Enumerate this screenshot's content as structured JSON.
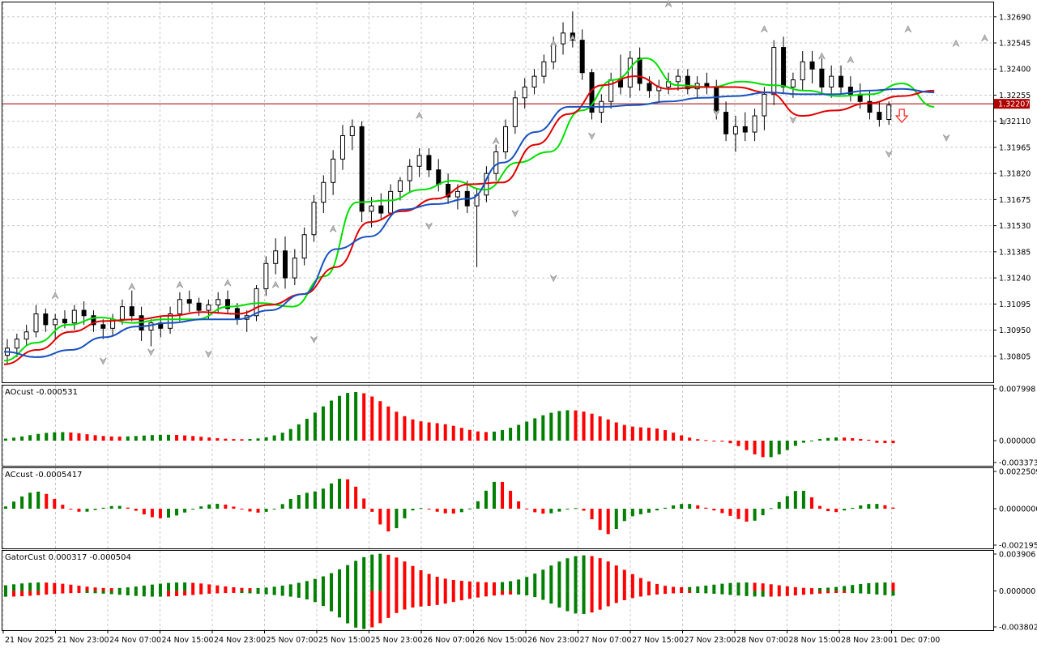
{
  "chart_data": {
    "type": "candlestick",
    "main": {
      "y_ticks": [
        "1.32690",
        "1.32545",
        "1.32400",
        "1.32255",
        "1.32110",
        "1.31965",
        "1.31820",
        "1.31675",
        "1.31530",
        "1.31385",
        "1.31240",
        "1.31095",
        "1.30950",
        "1.30805"
      ],
      "ylim": [
        1.3066,
        1.3277
      ],
      "current_price": "1.32207",
      "current_value": 1.32207,
      "series": [
        {
          "name": "",
          "color": "#00e000",
          "values": [
            1.3078,
            1.3088,
            1.3098,
            1.3102,
            1.3099,
            1.3101,
            1.3101,
            1.3108,
            1.311,
            1.3108,
            1.3125,
            1.3166,
            1.3167,
            1.3173,
            1.3178,
            1.3173,
            1.3188,
            1.3194,
            1.3217,
            1.3234,
            1.3246,
            1.3231,
            1.323,
            1.3233,
            1.3231,
            1.3228,
            1.3225,
            1.3226,
            1.3232,
            1.3219
          ]
        },
        {
          "name": "",
          "color": "#e00000",
          "values": [
            1.3076,
            1.3084,
            1.3094,
            1.31,
            1.3101,
            1.3103,
            1.3105,
            1.3104,
            1.3109,
            1.3115,
            1.313,
            1.3155,
            1.3161,
            1.3168,
            1.3176,
            1.3177,
            1.3198,
            1.3215,
            1.3231,
            1.3236,
            1.3229,
            1.323,
            1.323,
            1.3227,
            1.3214,
            1.3217,
            1.3221,
            1.3225,
            1.3228
          ]
        },
        {
          "name": "",
          "color": "#1a52c0",
          "values": [
            1.3083,
            1.308,
            1.3084,
            1.3091,
            1.3097,
            1.3099,
            1.3101,
            1.3101,
            1.3106,
            1.3115,
            1.314,
            1.3147,
            1.3162,
            1.3165,
            1.3168,
            1.3188,
            1.3205,
            1.3219,
            1.3219,
            1.322,
            1.3222,
            1.3224,
            1.3225,
            1.3227,
            1.3226,
            1.3226,
            1.3228,
            1.3229,
            1.3227
          ]
        }
      ],
      "candles_ohlc": [
        [
          1.3081,
          1.309,
          1.3076,
          1.3085
        ],
        [
          1.3085,
          1.3093,
          1.308,
          1.309
        ],
        [
          1.309,
          1.3098,
          1.3086,
          1.3094
        ],
        [
          1.3094,
          1.3109,
          1.3091,
          1.3104
        ],
        [
          1.3104,
          1.3107,
          1.3094,
          1.3098
        ],
        [
          1.3098,
          1.3104,
          1.309,
          1.3101
        ],
        [
          1.3101,
          1.3106,
          1.3096,
          1.3099
        ],
        [
          1.3099,
          1.3109,
          1.3095,
          1.3106
        ],
        [
          1.3106,
          1.3111,
          1.3098,
          1.3103
        ],
        [
          1.3103,
          1.3106,
          1.3094,
          1.3098
        ],
        [
          1.3098,
          1.3101,
          1.309,
          1.3096
        ],
        [
          1.3096,
          1.3104,
          1.3092,
          1.3101
        ],
        [
          1.3101,
          1.3112,
          1.3098,
          1.3108
        ],
        [
          1.3108,
          1.3117,
          1.31,
          1.3103
        ],
        [
          1.3103,
          1.3108,
          1.3089,
          1.3095
        ],
        [
          1.3095,
          1.3101,
          1.3086,
          1.3099
        ],
        [
          1.3099,
          1.3103,
          1.3091,
          1.3096
        ],
        [
          1.3096,
          1.3108,
          1.3093,
          1.3104
        ],
        [
          1.3104,
          1.3116,
          1.31,
          1.3112
        ],
        [
          1.3112,
          1.3117,
          1.3105,
          1.311
        ],
        [
          1.311,
          1.3113,
          1.3103,
          1.3106
        ],
        [
          1.3106,
          1.3112,
          1.3101,
          1.3109
        ],
        [
          1.3109,
          1.3116,
          1.3104,
          1.3112
        ],
        [
          1.3112,
          1.3117,
          1.3104,
          1.3107
        ],
        [
          1.3107,
          1.311,
          1.3098,
          1.3101
        ],
        [
          1.3101,
          1.3106,
          1.3094,
          1.3103
        ],
        [
          1.3103,
          1.312,
          1.31,
          1.3118
        ],
        [
          1.3118,
          1.3136,
          1.3114,
          1.3132
        ],
        [
          1.3132,
          1.3146,
          1.3126,
          1.3139
        ],
        [
          1.3139,
          1.3147,
          1.3118,
          1.3124
        ],
        [
          1.3124,
          1.314,
          1.312,
          1.3135
        ],
        [
          1.3135,
          1.3152,
          1.3131,
          1.3148
        ],
        [
          1.3148,
          1.317,
          1.3144,
          1.3166
        ],
        [
          1.3166,
          1.3181,
          1.316,
          1.3177
        ],
        [
          1.3177,
          1.3195,
          1.317,
          1.319
        ],
        [
          1.319,
          1.3209,
          1.3184,
          1.3203
        ],
        [
          1.3203,
          1.3212,
          1.3195,
          1.3208
        ],
        [
          1.3208,
          1.3211,
          1.3155,
          1.3161
        ],
        [
          1.3161,
          1.3169,
          1.3152,
          1.3164
        ],
        [
          1.3164,
          1.3171,
          1.3157,
          1.316
        ],
        [
          1.316,
          1.3176,
          1.3158,
          1.3172
        ],
        [
          1.3172,
          1.318,
          1.3167,
          1.3178
        ],
        [
          1.3178,
          1.319,
          1.3172,
          1.3186
        ],
        [
          1.3186,
          1.3196,
          1.318,
          1.3192
        ],
        [
          1.3192,
          1.3196,
          1.318,
          1.3184
        ],
        [
          1.3184,
          1.319,
          1.3172,
          1.3176
        ],
        [
          1.3176,
          1.3182,
          1.3165,
          1.3169
        ],
        [
          1.3169,
          1.3176,
          1.3162,
          1.3172
        ],
        [
          1.3172,
          1.3178,
          1.316,
          1.3164
        ],
        [
          1.3164,
          1.3174,
          1.313,
          1.317
        ],
        [
          1.317,
          1.3186,
          1.3166,
          1.3182
        ],
        [
          1.3182,
          1.3198,
          1.3178,
          1.3194
        ],
        [
          1.3194,
          1.3212,
          1.319,
          1.3208
        ],
        [
          1.3208,
          1.3228,
          1.3204,
          1.3224
        ],
        [
          1.3224,
          1.3235,
          1.3218,
          1.323
        ],
        [
          1.323,
          1.324,
          1.3226,
          1.3236
        ],
        [
          1.3236,
          1.3248,
          1.3232,
          1.3244
        ],
        [
          1.3244,
          1.3258,
          1.324,
          1.3254
        ],
        [
          1.3254,
          1.3266,
          1.3248,
          1.326
        ],
        [
          1.326,
          1.3272,
          1.3252,
          1.3256
        ],
        [
          1.3256,
          1.3262,
          1.3234,
          1.3238
        ],
        [
          1.3238,
          1.324,
          1.3212,
          1.3216
        ],
        [
          1.3216,
          1.3226,
          1.321,
          1.3222
        ],
        [
          1.3222,
          1.3238,
          1.3218,
          1.3234
        ],
        [
          1.3234,
          1.3248,
          1.3226,
          1.323
        ],
        [
          1.323,
          1.325,
          1.3224,
          1.3246
        ],
        [
          1.3246,
          1.3252,
          1.3228,
          1.3232
        ],
        [
          1.3232,
          1.3236,
          1.3224,
          1.3228
        ],
        [
          1.3228,
          1.3234,
          1.3222,
          1.323
        ],
        [
          1.323,
          1.3238,
          1.3226,
          1.3233
        ],
        [
          1.3233,
          1.324,
          1.3228,
          1.3236
        ],
        [
          1.3236,
          1.324,
          1.3226,
          1.3229
        ],
        [
          1.3229,
          1.3236,
          1.3224,
          1.3232
        ],
        [
          1.3232,
          1.3238,
          1.3226,
          1.323
        ],
        [
          1.323,
          1.3234,
          1.3212,
          1.3216
        ],
        [
          1.3216,
          1.3222,
          1.32,
          1.3204
        ],
        [
          1.3204,
          1.3214,
          1.3194,
          1.3208
        ],
        [
          1.3208,
          1.3216,
          1.32,
          1.3205
        ],
        [
          1.3205,
          1.3218,
          1.32,
          1.3214
        ],
        [
          1.3214,
          1.323,
          1.3206,
          1.3226
        ],
        [
          1.3226,
          1.3256,
          1.322,
          1.3252
        ],
        [
          1.3252,
          1.3258,
          1.3226,
          1.323
        ],
        [
          1.323,
          1.3238,
          1.3224,
          1.3234
        ],
        [
          1.3234,
          1.325,
          1.3228,
          1.3244
        ],
        [
          1.3244,
          1.325,
          1.3232,
          1.324
        ],
        [
          1.324,
          1.3246,
          1.3226,
          1.323
        ],
        [
          1.323,
          1.3242,
          1.3224,
          1.3236
        ],
        [
          1.3236,
          1.3242,
          1.3226,
          1.323
        ],
        [
          1.323,
          1.3236,
          1.3222,
          1.3226
        ],
        [
          1.3226,
          1.3232,
          1.3218,
          1.3222
        ],
        [
          1.3222,
          1.3228,
          1.3212,
          1.3216
        ],
        [
          1.3216,
          1.3222,
          1.3208,
          1.3212
        ],
        [
          1.3212,
          1.3222,
          1.3209,
          1.322
        ]
      ],
      "fractals_up": [
        [
          5,
          1.3112
        ],
        [
          13,
          1.3117
        ],
        [
          18,
          1.3118
        ],
        [
          23,
          1.3119
        ],
        [
          28,
          1.3118
        ],
        [
          34,
          1.3149
        ],
        [
          43,
          1.3212
        ],
        [
          51,
          1.3198
        ],
        [
          57,
          1.3252
        ],
        [
          59,
          1.3255
        ],
        [
          69,
          1.3274
        ],
        [
          79,
          1.326
        ],
        [
          85,
          1.3245
        ],
        [
          88,
          1.3243
        ],
        [
          94,
          1.326
        ],
        [
          99,
          1.3252
        ],
        [
          102,
          1.3255
        ]
      ],
      "fractals_down": [
        [
          10,
          1.308
        ],
        [
          15,
          1.3085
        ],
        [
          21,
          1.3084
        ],
        [
          32,
          1.3092
        ],
        [
          44,
          1.3155
        ],
        [
          53,
          1.3162
        ],
        [
          57,
          1.3126
        ],
        [
          61,
          1.3205
        ],
        [
          74,
          1.3218
        ],
        [
          82,
          1.3214
        ],
        [
          92,
          1.3195
        ],
        [
          98,
          1.3204
        ],
        [
          104,
          1.3213
        ]
      ],
      "signal_arrow": "down"
    },
    "x_ticks": [
      "21 Nov 2025",
      "21 Nov 23:00",
      "24 Nov 07:00",
      "24 Nov 15:00",
      "24 Nov 23:00",
      "25 Nov 07:00",
      "25 Nov 15:00",
      "25 Nov 23:00",
      "26 Nov 07:00",
      "26 Nov 15:00",
      "26 Nov 23:00",
      "27 Nov 07:00",
      "27 Nov 15:00",
      "27 Nov 23:00",
      "28 Nov 07:00",
      "28 Nov 15:00",
      "28 Nov 23:00",
      "1 Dec 07:00"
    ],
    "panels": [
      {
        "title": "AOcust -0.000531",
        "y_ticks": [
          "0.007998",
          "0.000000",
          "-0.003373"
        ],
        "ylim": [
          -0.003373,
          0.007998
        ],
        "type": "bar"
      },
      {
        "title": "ACcust -0.0005417",
        "y_ticks": [
          "0.0022509",
          "0.0000000",
          "-0.0021956"
        ],
        "ylim": [
          -0.0021956,
          0.0022509
        ],
        "type": "bar"
      },
      {
        "title": "GatorCust 0.000317 -0.000504",
        "y_ticks": [
          "0.003906",
          "0.000000",
          "-0.003802"
        ],
        "ylim": [
          -0.003802,
          0.003906
        ],
        "type": "bar"
      }
    ],
    "colors": {
      "up": "#007f00",
      "down": "#ff0000",
      "grid": "#c8c8c8",
      "hline": "#a00000"
    }
  }
}
